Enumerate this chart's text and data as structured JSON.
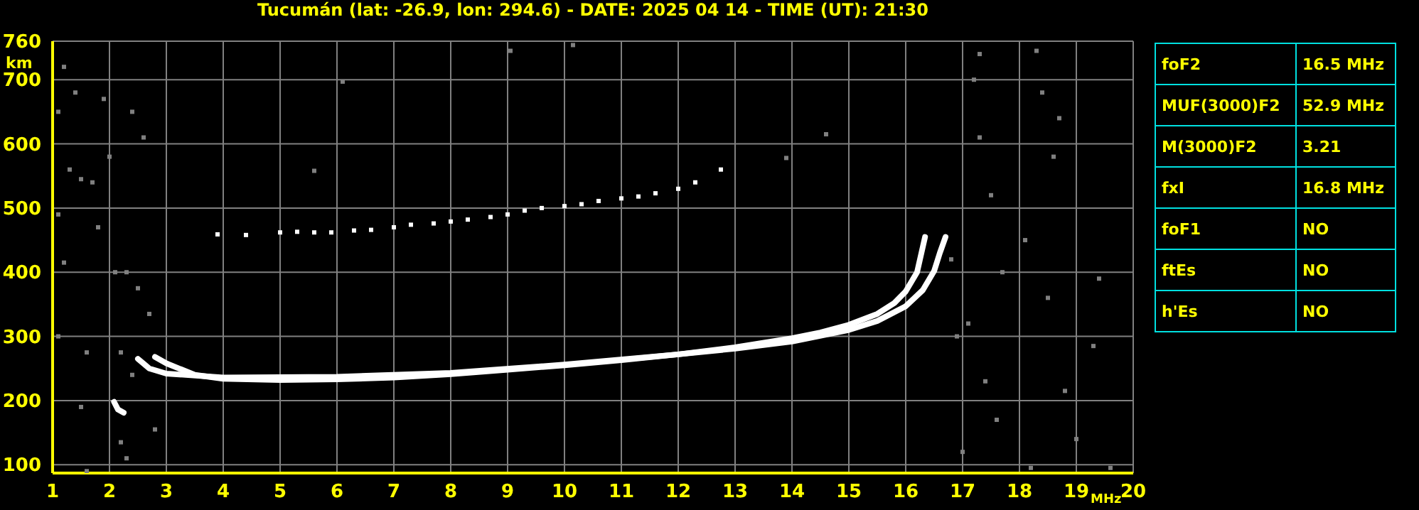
{
  "chart_data": [
    {
      "type": "line",
      "title": "Tucumán (lat: -26.9, lon: 294.6) - DATE: 2025 04 14 - TIME (UT): 21:30",
      "xlabel": "MHz",
      "ylabel": "km",
      "xlim": [
        1,
        20
      ],
      "xticks": [
        1,
        2,
        3,
        4,
        5,
        6,
        7,
        8,
        9,
        10,
        11,
        12,
        13,
        14,
        15,
        16,
        17,
        18,
        19,
        20
      ],
      "ylim": [
        87,
        760
      ],
      "yticks": [
        100,
        200,
        300,
        400,
        500,
        600,
        700,
        760
      ],
      "grid": true,
      "marker": "none",
      "line_style": "solid",
      "series": [
        {
          "type": "line",
          "color": "#ffffff",
          "x": [
            2.8,
            3,
            3.5,
            4,
            5,
            6,
            7,
            8,
            9,
            10,
            11,
            12,
            13,
            14,
            14.5,
            15,
            15.5,
            15.8,
            16,
            16.2,
            16.34
          ],
          "values": [
            268,
            258,
            240,
            234,
            232,
            233,
            236,
            241,
            248,
            255,
            263,
            272,
            283,
            297,
            306,
            318,
            335,
            352,
            370,
            400,
            455
          ]
        },
        {
          "type": "line",
          "color": "#ffffff",
          "x": [
            2.5,
            2.7,
            3,
            4,
            6,
            8,
            10,
            12,
            13,
            14,
            15,
            15.5,
            16,
            16.3,
            16.5,
            16.6,
            16.7
          ],
          "values": [
            265,
            250,
            242,
            236,
            237,
            243,
            256,
            272,
            281,
            292,
            310,
            324,
            347,
            372,
            402,
            430,
            455
          ]
        },
        {
          "type": "line",
          "color": "#ffffff",
          "x": [
            2.08,
            2.15,
            2.25
          ],
          "values": [
            198,
            186,
            181
          ]
        },
        {
          "type": "scatter",
          "marker": "square",
          "color": "#ffffff",
          "x": [
            3.9,
            4.4,
            5,
            5.3,
            5.6,
            5.9,
            6.3,
            6.6,
            7,
            7.3,
            7.7,
            8,
            8.3,
            8.7,
            9,
            9.3,
            9.6,
            10,
            10.3,
            10.6,
            11,
            11.3,
            11.6,
            12,
            12.3,
            12.75
          ],
          "values": [
            459,
            458,
            462,
            463,
            462,
            462,
            465,
            466,
            470,
            474,
            476,
            479,
            482,
            486,
            490,
            496,
            500,
            503,
            506,
            511,
            515,
            518,
            523,
            530,
            540,
            560
          ]
        },
        {
          "type": "scatter",
          "marker": "square",
          "color": "#808080",
          "x": [
            1.2,
            1.4,
            1.1,
            1.3,
            1.5,
            1.1,
            1.8,
            1.2,
            1.1,
            1.6,
            2.1,
            2.3,
            2.5,
            2.7,
            2.2,
            2.4,
            1.5,
            2.2,
            2.8,
            1.6,
            2.3,
            1.9,
            2.4,
            2.6,
            1.7,
            2,
            17.2,
            17.3,
            18.3,
            18.4,
            18.7,
            17.3,
            18.6,
            17.5,
            18.1,
            17.7,
            19.4,
            18.5,
            17.1,
            19.3,
            17.4,
            18.8,
            17.6,
            19,
            17,
            18.2,
            19.6,
            16.8,
            16.9,
            9.05,
            6.1,
            5.6,
            14.6,
            13.9,
            10.15
          ],
          "values": [
            720,
            680,
            650,
            560,
            545,
            490,
            470,
            415,
            300,
            275,
            400,
            400,
            375,
            335,
            275,
            240,
            190,
            135,
            155,
            90,
            110,
            670,
            650,
            610,
            540,
            580,
            700,
            740,
            745,
            680,
            640,
            610,
            580,
            520,
            450,
            400,
            390,
            360,
            320,
            285,
            230,
            215,
            170,
            140,
            120,
            95,
            95,
            420,
            300,
            745,
            697,
            558,
            615,
            578,
            754
          ]
        }
      ]
    },
    {
      "type": "other",
      "categories": [
        "foF2",
        "MUF(3000)F2",
        "M(3000)F2",
        "fxI",
        "foF1",
        "ftEs",
        "h'Es"
      ],
      "value_labels": [
        "16.5 MHz",
        "52.9 MHz",
        "3.21",
        "16.8 MHz",
        "NO",
        "NO",
        "NO"
      ]
    }
  ]
}
